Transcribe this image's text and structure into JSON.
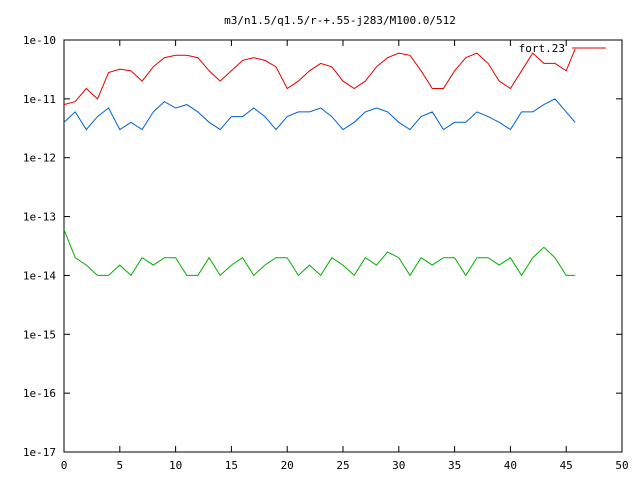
{
  "chart_data": {
    "type": "line",
    "title": "m3/n1.5/q1.5/r-+.55-j283/M100.0/512",
    "xlabel": "",
    "ylabel": "",
    "xlim": [
      0,
      50
    ],
    "ylim": [
      1e-17,
      1e-10
    ],
    "y_scale": "log",
    "x_ticks": [
      "0",
      "5",
      "10",
      "15",
      "20",
      "25",
      "30",
      "35",
      "40",
      "45",
      "50"
    ],
    "y_ticks": [
      "1e-17",
      "1e-16",
      "1e-15",
      "1e-14",
      "1e-13",
      "1e-12",
      "1e-11",
      "1e-10"
    ],
    "grid": false,
    "legend_position": "top-right",
    "series": [
      {
        "name": "fort.23",
        "color": "#e00000",
        "x": [
          0,
          1,
          2,
          3,
          4,
          5,
          6,
          7,
          8,
          9,
          10,
          11,
          12,
          13,
          14,
          15,
          16,
          17,
          18,
          19,
          20,
          21,
          22,
          23,
          24,
          25,
          26,
          27,
          28,
          29,
          30,
          31,
          32,
          33,
          34,
          35,
          36,
          37,
          38,
          39,
          40,
          41,
          42,
          43,
          44,
          45,
          45.8
        ],
        "y": [
          8e-12,
          9e-12,
          1.5e-11,
          1e-11,
          2.8e-11,
          3.2e-11,
          3e-11,
          2e-11,
          3.5e-11,
          5e-11,
          5.5e-11,
          5.5e-11,
          5e-11,
          3e-11,
          2e-11,
          3e-11,
          4.5e-11,
          5e-11,
          4.5e-11,
          3.5e-11,
          1.5e-11,
          2e-11,
          3e-11,
          4e-11,
          3.5e-11,
          2e-11,
          1.5e-11,
          2e-11,
          3.5e-11,
          5e-11,
          6e-11,
          5.5e-11,
          3e-11,
          1.5e-11,
          1.5e-11,
          3e-11,
          5e-11,
          6e-11,
          4e-11,
          2e-11,
          1.5e-11,
          3e-11,
          6e-11,
          4e-11,
          4e-11,
          3e-11,
          7e-11
        ]
      },
      {
        "name": "",
        "color": "#0060d0",
        "x": [
          0,
          1,
          2,
          3,
          4,
          5,
          6,
          7,
          8,
          9,
          10,
          11,
          12,
          13,
          14,
          15,
          16,
          17,
          18,
          19,
          20,
          21,
          22,
          23,
          24,
          25,
          26,
          27,
          28,
          29,
          30,
          31,
          32,
          33,
          34,
          35,
          36,
          37,
          38,
          39,
          40,
          41,
          42,
          43,
          44,
          45,
          45.8
        ],
        "y": [
          4e-12,
          6e-12,
          3e-12,
          5e-12,
          7e-12,
          3e-12,
          4e-12,
          3e-12,
          6e-12,
          9e-12,
          7e-12,
          8e-12,
          6e-12,
          4e-12,
          3e-12,
          5e-12,
          5e-12,
          7e-12,
          5e-12,
          3e-12,
          5e-12,
          6e-12,
          6e-12,
          7e-12,
          5e-12,
          3e-12,
          4e-12,
          6e-12,
          7e-12,
          6e-12,
          4e-12,
          3e-12,
          5e-12,
          6e-12,
          3e-12,
          4e-12,
          4e-12,
          6e-12,
          5e-12,
          4e-12,
          3e-12,
          6e-12,
          6e-12,
          8e-12,
          1e-11,
          6e-12,
          4e-12
        ]
      },
      {
        "name": "",
        "color": "#00b000",
        "x": [
          0,
          1,
          2,
          3,
          4,
          5,
          6,
          7,
          8,
          9,
          10,
          11,
          12,
          13,
          14,
          15,
          16,
          17,
          18,
          19,
          20,
          21,
          22,
          23,
          24,
          25,
          26,
          27,
          28,
          29,
          30,
          31,
          32,
          33,
          34,
          35,
          36,
          37,
          38,
          39,
          40,
          41,
          42,
          43,
          44,
          45,
          45.8
        ],
        "y": [
          6e-14,
          2e-14,
          1.5e-14,
          1e-14,
          1e-14,
          1.5e-14,
          1e-14,
          2e-14,
          1.5e-14,
          2e-14,
          2e-14,
          1e-14,
          1e-14,
          2e-14,
          1e-14,
          1.5e-14,
          2e-14,
          1e-14,
          1.5e-14,
          2e-14,
          2e-14,
          1e-14,
          1.5e-14,
          1e-14,
          2e-14,
          1.5e-14,
          1e-14,
          2e-14,
          1.5e-14,
          2.5e-14,
          2e-14,
          1e-14,
          2e-14,
          1.5e-14,
          2e-14,
          2e-14,
          1e-14,
          2e-14,
          2e-14,
          1.5e-14,
          2e-14,
          1e-14,
          2e-14,
          3e-14,
          2e-14,
          1e-14,
          1e-14
        ]
      }
    ]
  }
}
